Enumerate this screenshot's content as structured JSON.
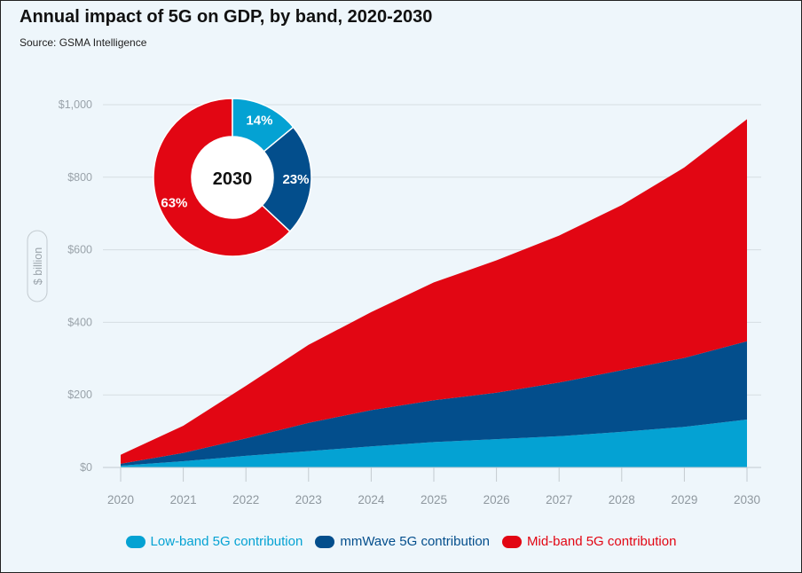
{
  "header": {
    "title": "Annual impact of 5G on GDP, by band, 2020-2030",
    "subtitle": "Source: GSMA Intelligence"
  },
  "colors": {
    "low": "#04a2d3",
    "mmwave": "#034e8c",
    "mid": "#e20613",
    "grid": "#d5dde2",
    "tick": "#9aa3aa"
  },
  "chart_data": [
    {
      "type": "area",
      "stacked": true,
      "title": "Annual impact of 5G on GDP, by band, 2020-2030",
      "ylabel": "$ billion",
      "xlabel": "",
      "ylim": [
        0,
        1000
      ],
      "yticks": [
        0,
        200,
        400,
        600,
        800,
        1000
      ],
      "ytick_labels": [
        "$0",
        "$200",
        "$400",
        "$600",
        "$800",
        "$1,000"
      ],
      "grid": true,
      "legend_position": "bottom",
      "x": [
        "2020",
        "2021",
        "2022",
        "2023",
        "2024",
        "2025",
        "2026",
        "2027",
        "2028",
        "2029",
        "2030"
      ],
      "series": [
        {
          "name": "Low-band 5G contribution",
          "color": "#04a2d3",
          "values": [
            5,
            17,
            32,
            45,
            58,
            70,
            78,
            86,
            98,
            112,
            132
          ]
        },
        {
          "name": "mmWave 5G contribution",
          "color": "#034e8c",
          "values": [
            5,
            23,
            48,
            78,
            100,
            115,
            128,
            148,
            170,
            190,
            216
          ]
        },
        {
          "name": "Mid-band 5G contribution",
          "color": "#e20613",
          "values": [
            25,
            75,
            145,
            215,
            270,
            325,
            365,
            405,
            455,
            525,
            612
          ]
        }
      ]
    },
    {
      "type": "pie",
      "donut": true,
      "center_label": "2030",
      "slices": [
        {
          "name": "Low-band 5G contribution",
          "label": "14%",
          "value": 14,
          "color": "#04a2d3"
        },
        {
          "name": "mmWave 5G contribution",
          "label": "23%",
          "value": 23,
          "color": "#034e8c"
        },
        {
          "name": "Mid-band 5G contribution",
          "label": "63%",
          "value": 63,
          "color": "#e20613"
        }
      ]
    }
  ]
}
